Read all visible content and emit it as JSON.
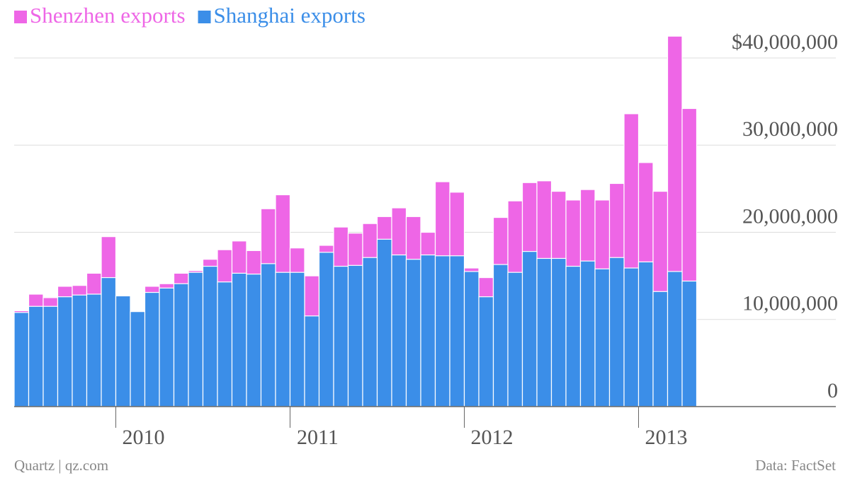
{
  "chart_data": {
    "type": "bar",
    "source": "Data: FactSet",
    "credit": "Quartz | qz.com",
    "legend": "top-left",
    "grid": true,
    "categories": [
      null,
      null,
      null,
      null,
      null,
      null,
      null,
      "2010",
      null,
      null,
      null,
      null,
      null,
      null,
      null,
      null,
      null,
      null,
      null,
      "2011",
      null,
      null,
      null,
      null,
      null,
      null,
      null,
      null,
      null,
      null,
      null,
      "2012",
      null,
      null,
      null,
      null,
      null,
      null,
      null,
      null,
      null,
      null,
      null,
      "2013",
      null,
      null,
      null
    ],
    "series": [
      {
        "name": "Shenzhen exports",
        "color": "#ee66e6",
        "values": [
          11000000,
          12900000,
          12500000,
          13800000,
          13900000,
          15300000,
          19500000,
          9500000,
          9800000,
          13800000,
          14100000,
          15300000,
          15600000,
          16900000,
          18000000,
          19000000,
          17900000,
          22700000,
          24300000,
          18200000,
          15000000,
          18500000,
          20600000,
          19900000,
          21000000,
          21800000,
          22800000,
          21800000,
          20000000,
          25800000,
          24600000,
          15900000,
          14800000,
          21700000,
          23600000,
          25700000,
          25900000,
          24700000,
          23700000,
          24900000,
          23700000,
          25600000,
          33600000,
          28000000,
          24700000,
          42500000,
          34200000
        ]
      },
      {
        "name": "Shanghai exports",
        "color": "#3b8ee8",
        "values": [
          10800000,
          11500000,
          11500000,
          12600000,
          12800000,
          12900000,
          14800000,
          12700000,
          10900000,
          13100000,
          13600000,
          14100000,
          15400000,
          16100000,
          14300000,
          15300000,
          15200000,
          16400000,
          15400000,
          15400000,
          10400000,
          17700000,
          16100000,
          16200000,
          17100000,
          19200000,
          17400000,
          16900000,
          17400000,
          17300000,
          17300000,
          15500000,
          12600000,
          16300000,
          15400000,
          17800000,
          17000000,
          17000000,
          16100000,
          16700000,
          15800000,
          17100000,
          15900000,
          16600000,
          13200000,
          15500000,
          14400000
        ]
      }
    ],
    "ylim": [
      0,
      43000000
    ],
    "yticks": [
      0,
      {
        "value": 10000000,
        "label": "10,000,000"
      },
      {
        "value": 20000000,
        "label": "20,000,000"
      },
      {
        "value": 30000000,
        "label": "30,000,000"
      },
      {
        "value": 40000000,
        "label": "$40,000,000"
      }
    ]
  }
}
